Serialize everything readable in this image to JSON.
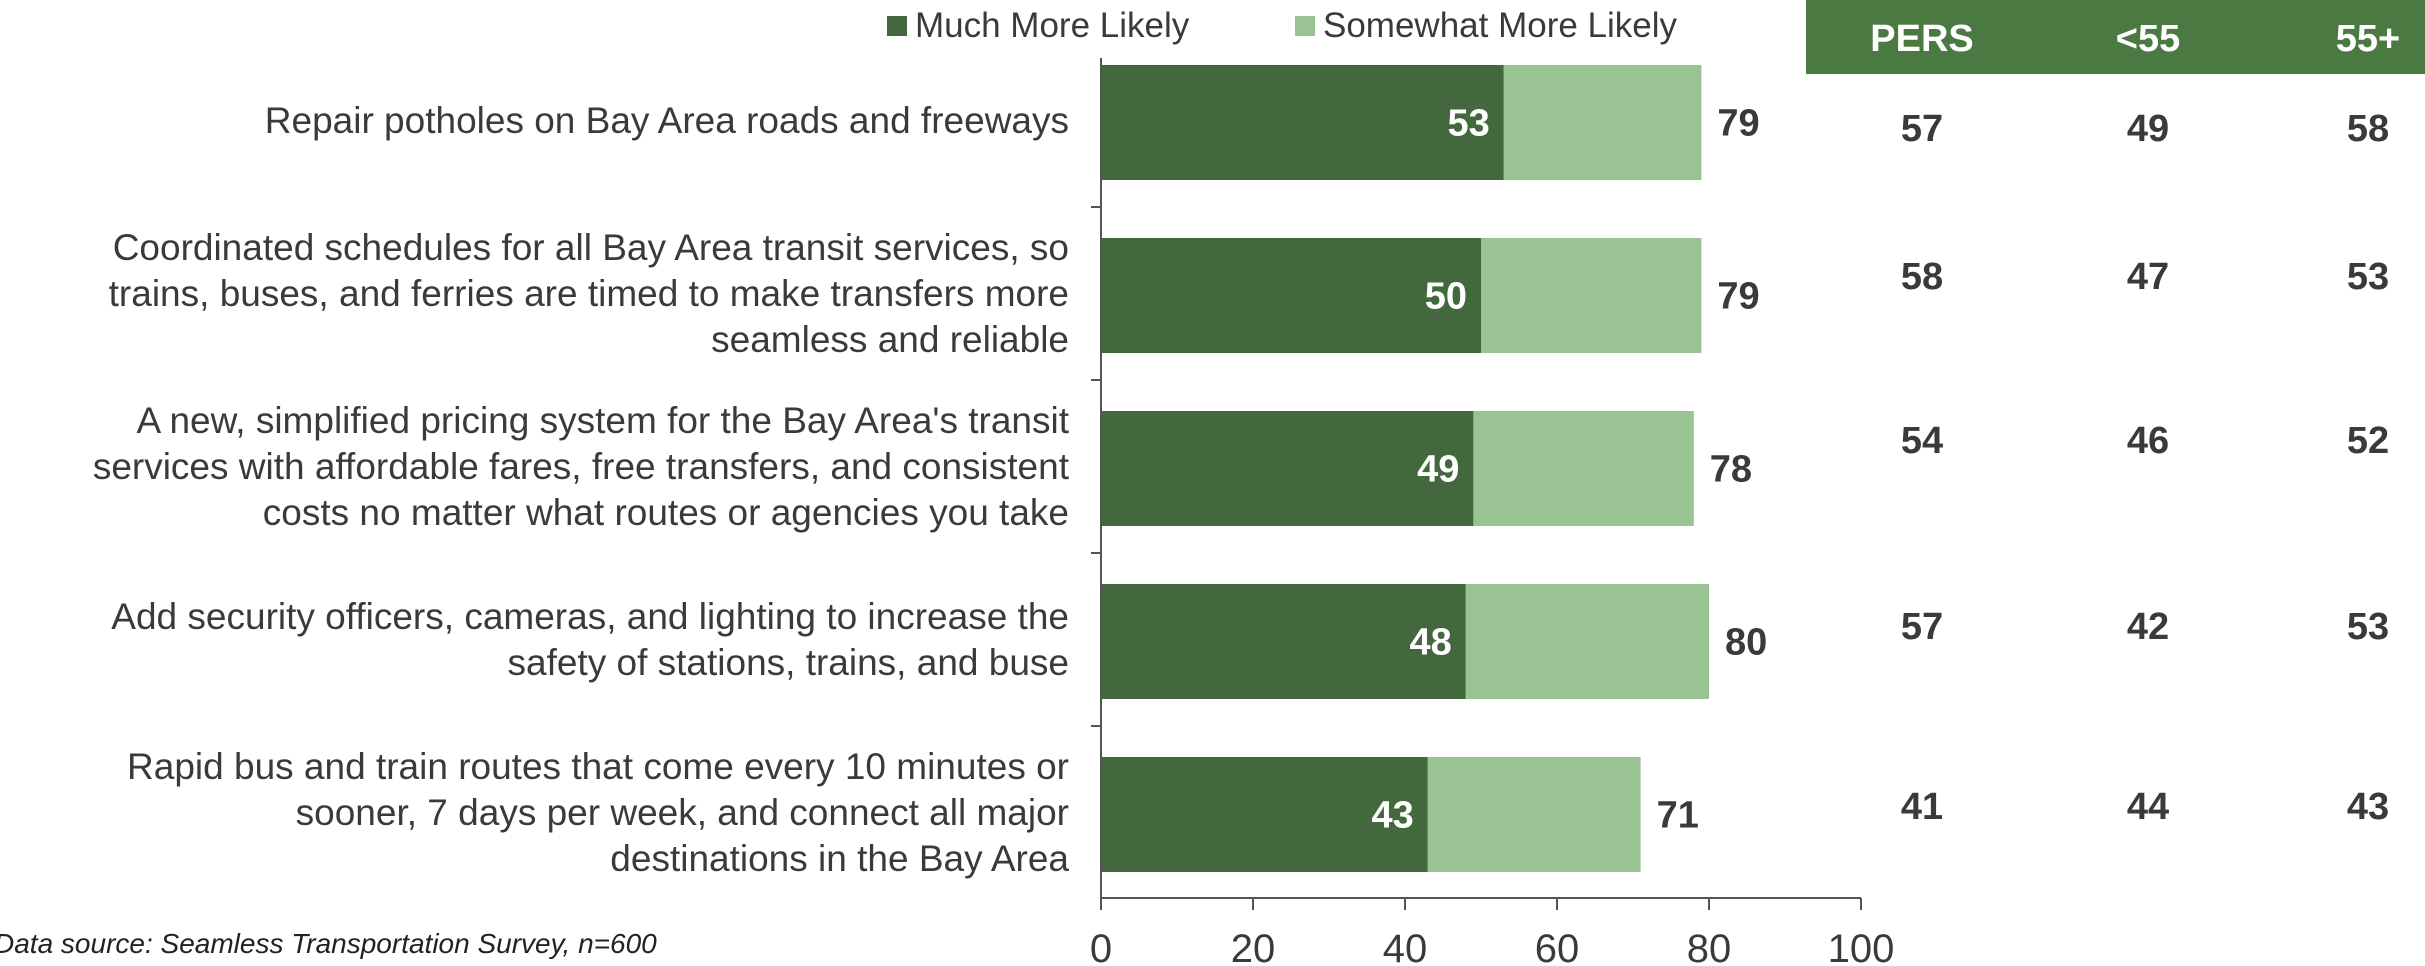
{
  "colors": {
    "much": "#44683d",
    "somewhat": "#9ac394",
    "header_bg": "#4a7a41",
    "text": "#3a3a3a",
    "axis": "#555555"
  },
  "legend": {
    "much_label": "Much More Likely",
    "somewhat_label": "Somewhat More Likely"
  },
  "table": {
    "headers": [
      "PERS",
      "<55",
      "55+"
    ],
    "rows": [
      [
        "57",
        "49",
        "58"
      ],
      [
        "58",
        "47",
        "53"
      ],
      [
        "54",
        "46",
        "52"
      ],
      [
        "57",
        "42",
        "53"
      ],
      [
        "41",
        "44",
        "43"
      ]
    ]
  },
  "source": "Data source: Seamless Transportation Survey, n=600",
  "chart_data": {
    "type": "bar",
    "orientation": "horizontal",
    "stacked": true,
    "categories": [
      "Repair potholes on Bay Area roads and freeways",
      "Coordinated schedules for all Bay Area transit services, so trains, buses, and ferries are timed to make transfers more seamless and reliable",
      "A new, simplified pricing system for the Bay Area's transit services with affordable fares, free transfers, and consistent costs no matter what routes or agencies you take",
      "Add security officers, cameras, and lighting to increase the safety of stations, trains, and buse",
      "Rapid bus and train routes that come every 10 minutes or sooner, 7 days per week, and connect all major destinations in the Bay Area"
    ],
    "category_lines": [
      [
        "Repair potholes on Bay Area roads and freeways"
      ],
      [
        "Coordinated schedules for all Bay Area transit services, so",
        "trains, buses, and ferries are timed to make transfers more",
        "seamless and reliable"
      ],
      [
        "A new, simplified pricing system for the Bay Area's transit",
        "services with affordable fares, free transfers, and consistent",
        "costs no matter what routes or agencies you take"
      ],
      [
        "Add security officers, cameras, and lighting to increase the",
        "safety of stations, trains, and buse"
      ],
      [
        "Rapid bus and train routes that come every 10 minutes or",
        "sooner, 7 days per week, and connect all major",
        "destinations in the Bay Area"
      ]
    ],
    "series": [
      {
        "name": "Much More Likely",
        "values": [
          53,
          50,
          49,
          48,
          43
        ]
      },
      {
        "name": "Somewhat More Likely",
        "values": [
          26,
          29,
          29,
          32,
          28
        ]
      }
    ],
    "totals": [
      79,
      79,
      78,
      80,
      71
    ],
    "xlim": [
      0,
      100
    ],
    "xticks": [
      "0",
      "20",
      "40",
      "60",
      "80",
      "100"
    ],
    "legend_position": "top",
    "grid": false
  }
}
